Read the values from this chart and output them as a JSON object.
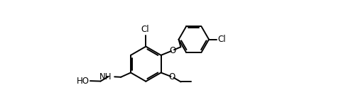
{
  "background": "#ffffff",
  "line_color": "#000000",
  "line_width": 1.4,
  "font_size": 8.5,
  "figsize": [
    4.8,
    1.58
  ],
  "dpi": 100,
  "xlim": [
    -3.8,
    7.2
  ],
  "ylim": [
    -2.8,
    4.2
  ]
}
